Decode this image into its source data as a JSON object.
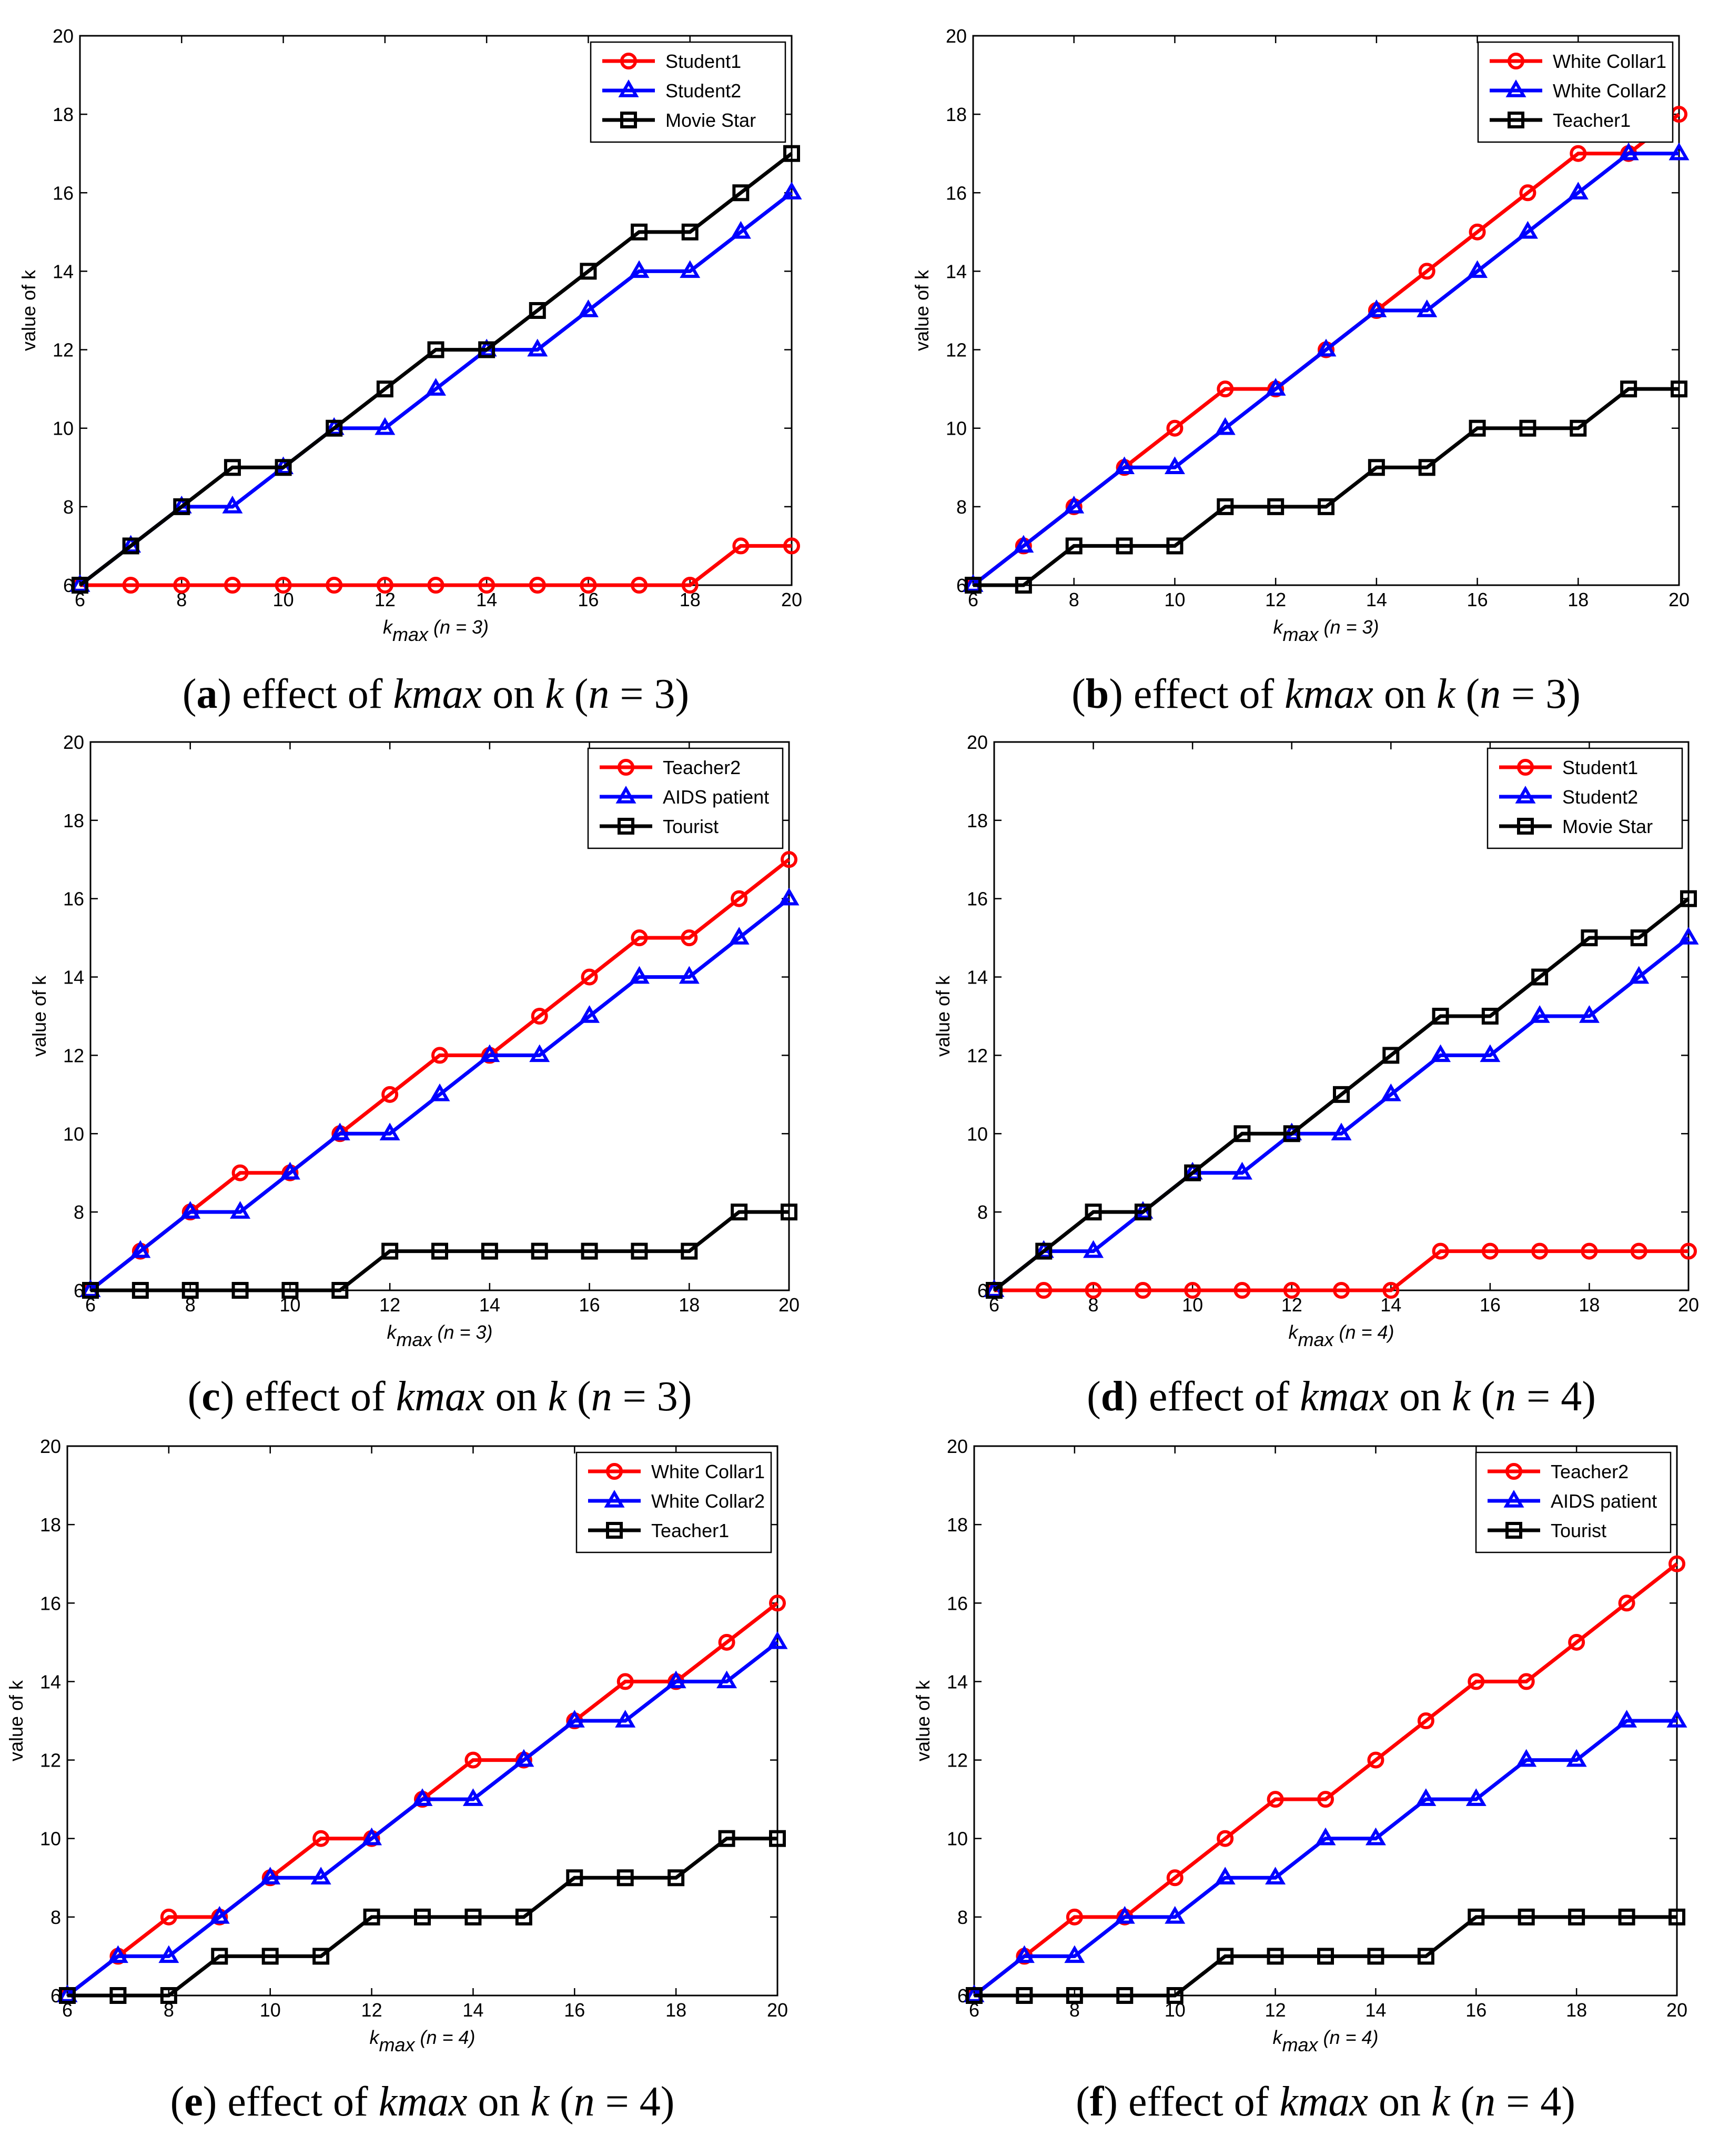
{
  "chart_data": [
    {
      "type": "line",
      "panel": "a",
      "x": [
        6,
        7,
        8,
        9,
        10,
        11,
        12,
        13,
        14,
        15,
        16,
        17,
        18,
        19,
        20
      ],
      "series": [
        {
          "name": "Student1",
          "color": "#ff0000",
          "marker": "circle",
          "values": [
            6,
            6,
            6,
            6,
            6,
            6,
            6,
            6,
            6,
            6,
            6,
            6,
            6,
            7,
            7
          ]
        },
        {
          "name": "Student2",
          "color": "#0000ff",
          "marker": "triangle",
          "values": [
            6,
            7,
            8,
            8,
            9,
            10,
            10,
            11,
            12,
            12,
            13,
            14,
            14,
            15,
            16
          ]
        },
        {
          "name": "Movie Star",
          "color": "#000000",
          "marker": "square",
          "values": [
            6,
            7,
            8,
            9,
            9,
            10,
            11,
            12,
            12,
            13,
            14,
            15,
            15,
            16,
            17
          ]
        }
      ],
      "xticks": [
        "6",
        "8",
        "10",
        "12",
        "14",
        "16",
        "18",
        "20"
      ],
      "yticks": [
        "6",
        "8",
        "10",
        "12",
        "14",
        "16",
        "18",
        "20"
      ],
      "xlim": [
        6,
        20
      ],
      "ylim": [
        6,
        20
      ],
      "ylabel": "value of k",
      "xlabel": {
        "main": "k",
        "sub": "max",
        "rest": " (n = 3)"
      },
      "legend_position": "top-right",
      "caption": {
        "label": "a",
        "text1": " effect of ",
        "k": "k",
        "max": "max",
        "text2": " on ",
        "k2": "k",
        "text3": " (",
        "n": "n",
        "text4": " = 3)"
      }
    },
    {
      "type": "line",
      "panel": "b",
      "x": [
        6,
        7,
        8,
        9,
        10,
        11,
        12,
        13,
        14,
        15,
        16,
        17,
        18,
        19,
        20
      ],
      "series": [
        {
          "name": "White Collar1",
          "color": "#ff0000",
          "marker": "circle",
          "values": [
            6,
            7,
            8,
            9,
            10,
            11,
            11,
            12,
            13,
            14,
            15,
            16,
            17,
            17,
            18
          ]
        },
        {
          "name": "White Collar2",
          "color": "#0000ff",
          "marker": "triangle",
          "values": [
            6,
            7,
            8,
            9,
            9,
            10,
            11,
            12,
            13,
            13,
            14,
            15,
            16,
            17,
            17
          ]
        },
        {
          "name": "Teacher1",
          "color": "#000000",
          "marker": "square",
          "values": [
            6,
            6,
            7,
            7,
            7,
            8,
            8,
            8,
            9,
            9,
            10,
            10,
            10,
            11,
            11
          ]
        }
      ],
      "xticks": [
        "6",
        "8",
        "10",
        "12",
        "14",
        "16",
        "18",
        "20"
      ],
      "yticks": [
        "6",
        "8",
        "10",
        "12",
        "14",
        "16",
        "18",
        "20"
      ],
      "xlim": [
        6,
        20
      ],
      "ylim": [
        6,
        20
      ],
      "ylabel": "value of k",
      "xlabel": {
        "main": "k",
        "sub": "max",
        "rest": " (n = 3)"
      },
      "legend_position": "top-right",
      "caption": {
        "label": "b",
        "text1": " effect of ",
        "k": "k",
        "max": "max",
        "text2": " on ",
        "k2": "k",
        "text3": " (",
        "n": "n",
        "text4": " = 3)"
      }
    },
    {
      "type": "line",
      "panel": "c",
      "x": [
        6,
        7,
        8,
        9,
        10,
        11,
        12,
        13,
        14,
        15,
        16,
        17,
        18,
        19,
        20
      ],
      "series": [
        {
          "name": "Teacher2",
          "color": "#ff0000",
          "marker": "circle",
          "values": [
            6,
            7,
            8,
            9,
            9,
            10,
            11,
            12,
            12,
            13,
            14,
            15,
            15,
            16,
            17
          ]
        },
        {
          "name": "AIDS patient",
          "color": "#0000ff",
          "marker": "triangle",
          "values": [
            6,
            7,
            8,
            8,
            9,
            10,
            10,
            11,
            12,
            12,
            13,
            14,
            14,
            15,
            16
          ]
        },
        {
          "name": "Tourist",
          "color": "#000000",
          "marker": "square",
          "values": [
            6,
            6,
            6,
            6,
            6,
            6,
            7,
            7,
            7,
            7,
            7,
            7,
            7,
            8,
            8
          ]
        }
      ],
      "xticks": [
        "6",
        "8",
        "10",
        "12",
        "14",
        "16",
        "18",
        "20"
      ],
      "yticks": [
        "6",
        "8",
        "10",
        "12",
        "14",
        "16",
        "18",
        "20"
      ],
      "xlim": [
        6,
        20
      ],
      "ylim": [
        6,
        20
      ],
      "ylabel": "value of k",
      "xlabel": {
        "main": "k",
        "sub": "max",
        "rest": " (n = 3)"
      },
      "legend_position": "top-right",
      "caption": {
        "label": "c",
        "text1": " effect of ",
        "k": "k",
        "max": "max",
        "text2": " on ",
        "k2": "k",
        "text3": " (",
        "n": "n",
        "text4": " = 3)"
      }
    },
    {
      "type": "line",
      "panel": "d",
      "x": [
        6,
        7,
        8,
        9,
        10,
        11,
        12,
        13,
        14,
        15,
        16,
        17,
        18,
        19,
        20
      ],
      "series": [
        {
          "name": "Student1",
          "color": "#ff0000",
          "marker": "circle",
          "values": [
            6,
            6,
            6,
            6,
            6,
            6,
            6,
            6,
            6,
            7,
            7,
            7,
            7,
            7,
            7
          ]
        },
        {
          "name": "Student2",
          "color": "#0000ff",
          "marker": "triangle",
          "values": [
            6,
            7,
            7,
            8,
            9,
            9,
            10,
            10,
            11,
            12,
            12,
            13,
            13,
            14,
            15
          ]
        },
        {
          "name": "Movie Star",
          "color": "#000000",
          "marker": "square",
          "values": [
            6,
            7,
            8,
            8,
            9,
            10,
            10,
            11,
            12,
            13,
            13,
            14,
            15,
            15,
            16
          ]
        }
      ],
      "xticks": [
        "6",
        "8",
        "10",
        "12",
        "14",
        "16",
        "18",
        "20"
      ],
      "yticks": [
        "6",
        "8",
        "10",
        "12",
        "14",
        "16",
        "18",
        "20"
      ],
      "xlim": [
        6,
        20
      ],
      "ylim": [
        6,
        20
      ],
      "ylabel": "value of k",
      "xlabel": {
        "main": "k",
        "sub": "max",
        "rest": " (n = 4)"
      },
      "legend_position": "top-right",
      "caption": {
        "label": "d",
        "text1": " effect of ",
        "k": "k",
        "max": "max",
        "text2": " on ",
        "k2": "k",
        "text3": " (",
        "n": "n",
        "text4": " = 4)"
      }
    },
    {
      "type": "line",
      "panel": "e",
      "x": [
        6,
        7,
        8,
        9,
        10,
        11,
        12,
        13,
        14,
        15,
        16,
        17,
        18,
        19,
        20
      ],
      "series": [
        {
          "name": "White Collar1",
          "color": "#ff0000",
          "marker": "circle",
          "values": [
            6,
            7,
            8,
            8,
            9,
            10,
            10,
            11,
            12,
            12,
            13,
            14,
            14,
            15,
            16
          ]
        },
        {
          "name": "White Collar2",
          "color": "#0000ff",
          "marker": "triangle",
          "values": [
            6,
            7,
            7,
            8,
            9,
            9,
            10,
            11,
            11,
            12,
            13,
            13,
            14,
            14,
            15
          ]
        },
        {
          "name": "Teacher1",
          "color": "#000000",
          "marker": "square",
          "values": [
            6,
            6,
            6,
            7,
            7,
            7,
            8,
            8,
            8,
            8,
            9,
            9,
            9,
            10,
            10
          ]
        }
      ],
      "xticks": [
        "6",
        "8",
        "10",
        "12",
        "14",
        "16",
        "18",
        "20"
      ],
      "yticks": [
        "6",
        "8",
        "10",
        "12",
        "14",
        "16",
        "18",
        "20"
      ],
      "xlim": [
        6,
        20
      ],
      "ylim": [
        6,
        20
      ],
      "ylabel": "value of k",
      "xlabel": {
        "main": "k",
        "sub": "max",
        "rest": " (n = 4)"
      },
      "legend_position": "top-right",
      "caption": {
        "label": "e",
        "text1": " effect of ",
        "k": "k",
        "max": "max",
        "text2": " on ",
        "k2": "k",
        "text3": " (",
        "n": "n",
        "text4": " = 4)"
      }
    },
    {
      "type": "line",
      "panel": "f",
      "x": [
        6,
        7,
        8,
        9,
        10,
        11,
        12,
        13,
        14,
        15,
        16,
        17,
        18,
        19,
        20
      ],
      "series": [
        {
          "name": "Teacher2",
          "color": "#ff0000",
          "marker": "circle",
          "values": [
            6,
            7,
            8,
            8,
            9,
            10,
            11,
            11,
            12,
            13,
            14,
            14,
            15,
            16,
            17
          ]
        },
        {
          "name": "AIDS patient",
          "color": "#0000ff",
          "marker": "triangle",
          "values": [
            6,
            7,
            7,
            8,
            8,
            9,
            9,
            10,
            10,
            11,
            11,
            12,
            12,
            13,
            13
          ]
        },
        {
          "name": "Tourist",
          "color": "#000000",
          "marker": "square",
          "values": [
            6,
            6,
            6,
            6,
            6,
            7,
            7,
            7,
            7,
            7,
            8,
            8,
            8,
            8,
            8
          ]
        }
      ],
      "xticks": [
        "6",
        "8",
        "10",
        "12",
        "14",
        "16",
        "18",
        "20"
      ],
      "yticks": [
        "6",
        "8",
        "10",
        "12",
        "14",
        "16",
        "18",
        "20"
      ],
      "xlim": [
        6,
        20
      ],
      "ylim": [
        6,
        20
      ],
      "ylabel": "value of k",
      "xlabel": {
        "main": "k",
        "sub": "max",
        "rest": " (n = 4)"
      },
      "legend_position": "top-right",
      "caption": {
        "label": "f",
        "text1": " effect of ",
        "k": "k",
        "max": "max",
        "text2": " on ",
        "k2": "k",
        "text3": " (",
        "n": "n",
        "text4": " = 4)"
      }
    }
  ]
}
